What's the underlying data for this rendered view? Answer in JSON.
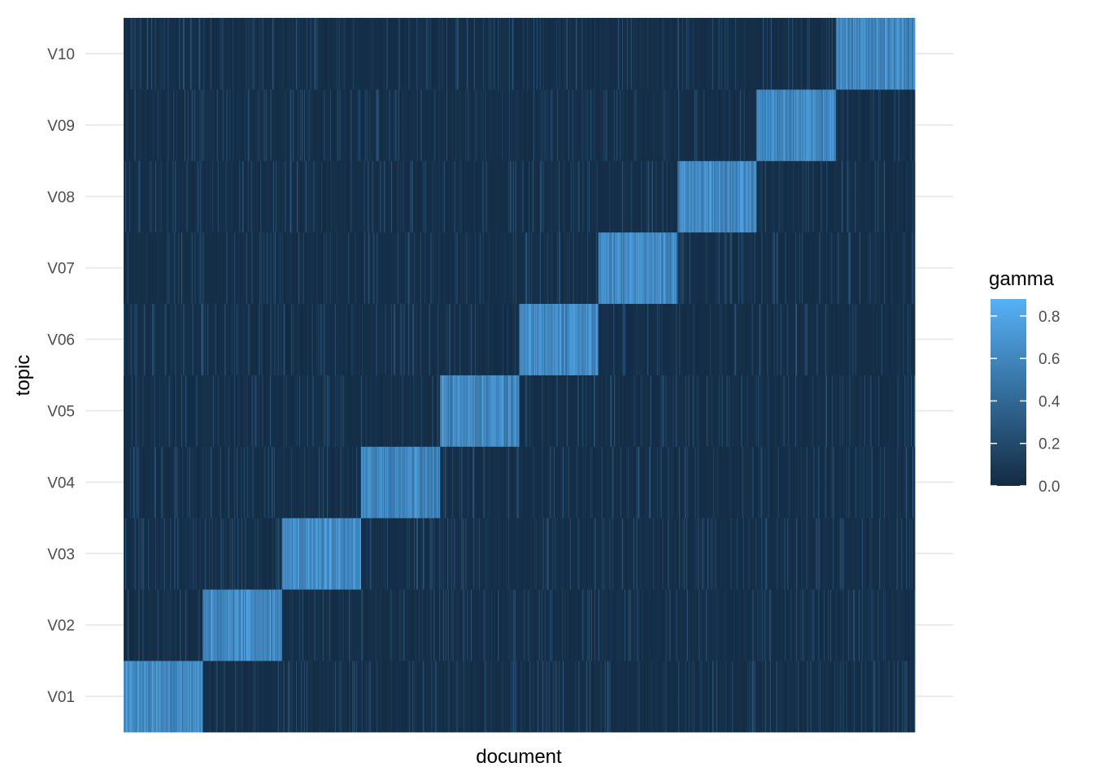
{
  "chart_data": {
    "type": "heatmap",
    "xlabel": "document",
    "ylabel": "topic",
    "topics": [
      "V01",
      "V02",
      "V03",
      "V04",
      "V05",
      "V06",
      "V07",
      "V08",
      "V09",
      "V10"
    ],
    "x_tick_labels": false,
    "documents_per_topic_block": 100,
    "diagonal_gamma_mean": 0.62,
    "off_diagonal_gamma_mean": 0.04,
    "legend": {
      "title": "gamma",
      "placement": "right",
      "min": 0.0,
      "max": 0.88,
      "ticks": [
        0.0,
        0.2,
        0.4,
        0.6,
        0.8
      ],
      "tick_labels": [
        "0.0",
        "0.2",
        "0.4",
        "0.6",
        "0.8"
      ],
      "low_color": "#132B43",
      "high_color": "#56B1F7"
    },
    "grid": true,
    "gridline_color": "#ebebeb"
  }
}
